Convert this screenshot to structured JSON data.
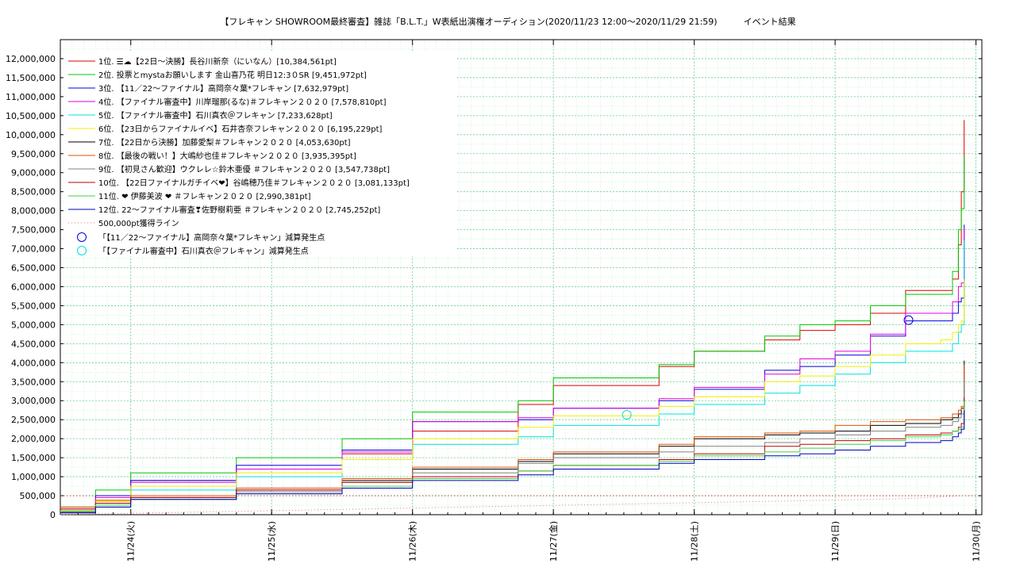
{
  "chart_data": {
    "type": "line",
    "title": "【フレキャン SHOWROOM最終審査】雑誌「B.L.T.」W表紙出演権オーディション(2020/11/23 12:00〜2020/11/29 21:59)　　　イベント結果",
    "xlabel": "",
    "ylabel": "",
    "x_range": [
      "2020-11-23 12:00",
      "2020-11-30 01:00"
    ],
    "ylim": [
      0,
      12500000
    ],
    "y_ticks": [
      0,
      500000,
      1000000,
      1500000,
      2000000,
      2500000,
      3000000,
      3500000,
      4000000,
      4500000,
      5000000,
      5500000,
      6000000,
      6500000,
      7000000,
      7500000,
      8000000,
      8500000,
      9000000,
      9500000,
      10000000,
      10500000,
      11000000,
      11500000,
      12000000
    ],
    "y_tick_labels": [
      "0",
      "500,000",
      "1,000,000",
      "1,500,000",
      "2,000,000",
      "2,500,000",
      "3,000,000",
      "3,500,000",
      "4,000,000",
      "4,500,000",
      "5,000,000",
      "5,500,000",
      "6,000,000",
      "6,500,000",
      "7,000,000",
      "7,500,000",
      "8,000,000",
      "8,500,000",
      "9,000,000",
      "9,500,000",
      "10,000,000",
      "10,500,000",
      "11,000,000",
      "11,500,000",
      "12,000,000"
    ],
    "x_ticks": [
      "2020-11-24",
      "2020-11-25",
      "2020-11-26",
      "2020-11-27",
      "2020-11-28",
      "2020-11-29",
      "2020-11-30"
    ],
    "x_tick_labels": [
      "11/24(火)",
      "11/25(水)",
      "11/26(木)",
      "11/27(金)",
      "11/28(土)",
      "11/29(日)",
      "11/30(月)"
    ],
    "grid": true,
    "legend_position": "top-left",
    "series": [
      {
        "name": "1位. ☰☁【22日〜決勝】長谷川新奈（にいなん）[10,384,561pt]",
        "color": "#e00000",
        "x": [
          "2020-11-23 12:00",
          "2020-11-23 18:00",
          "2020-11-24 00:00",
          "2020-11-24 18:00",
          "2020-11-25 12:00",
          "2020-11-26 00:00",
          "2020-11-26 18:00",
          "2020-11-27 00:00",
          "2020-11-27 18:00",
          "2020-11-28 00:00",
          "2020-11-28 12:00",
          "2020-11-28 18:00",
          "2020-11-29 00:00",
          "2020-11-29 06:00",
          "2020-11-29 12:00",
          "2020-11-29 18:00",
          "2020-11-29 20:00",
          "2020-11-29 21:00",
          "2020-11-29 21:30",
          "2020-11-29 21:59"
        ],
        "y": [
          100000,
          350000,
          900000,
          1200000,
          1600000,
          2200000,
          2900000,
          3400000,
          3900000,
          4300000,
          4600000,
          4850000,
          5000000,
          5300000,
          5900000,
          5900000,
          6200000,
          7100000,
          8500000,
          10384561
        ]
      },
      {
        "name": "2位. 投票とmystaお願いします 金山喜乃花 明日12:3０SR [9,451,972pt]",
        "color": "#00c800",
        "x": [
          "2020-11-23 12:00",
          "2020-11-23 18:00",
          "2020-11-24 00:00",
          "2020-11-24 18:00",
          "2020-11-25 12:00",
          "2020-11-26 00:00",
          "2020-11-26 18:00",
          "2020-11-27 00:00",
          "2020-11-27 18:00",
          "2020-11-28 00:00",
          "2020-11-28 12:00",
          "2020-11-28 18:00",
          "2020-11-29 00:00",
          "2020-11-29 06:00",
          "2020-11-29 12:00",
          "2020-11-29 18:00",
          "2020-11-29 20:00",
          "2020-11-29 21:00",
          "2020-11-29 21:30",
          "2020-11-29 21:59"
        ],
        "y": [
          200000,
          650000,
          1100000,
          1500000,
          2000000,
          2700000,
          3000000,
          3600000,
          3950000,
          4300000,
          4700000,
          5000000,
          5100000,
          5500000,
          5800000,
          5800000,
          6400000,
          7500000,
          8050000,
          9451972
        ]
      },
      {
        "name": "3位. 【11／22〜ファイナル】高岡奈々葉*フレキャン [7,632,979pt]",
        "color": "#0000e0",
        "x": [
          "2020-11-23 12:00",
          "2020-11-23 18:00",
          "2020-11-24 00:00",
          "2020-11-24 18:00",
          "2020-11-25 12:00",
          "2020-11-26 00:00",
          "2020-11-26 18:00",
          "2020-11-27 00:00",
          "2020-11-27 18:00",
          "2020-11-28 00:00",
          "2020-11-28 12:00",
          "2020-11-28 18:00",
          "2020-11-29 00:00",
          "2020-11-29 06:00",
          "2020-11-29 12:00",
          "2020-11-29 18:00",
          "2020-11-29 20:00",
          "2020-11-29 21:00",
          "2020-11-29 21:30",
          "2020-11-29 21:59"
        ],
        "y": [
          50000,
          500000,
          900000,
          1300000,
          1700000,
          2450000,
          2500000,
          2800000,
          3000000,
          3300000,
          3800000,
          3900000,
          4200000,
          4700000,
          5100000,
          5100000,
          5300000,
          5600000,
          5700000,
          7632979
        ]
      },
      {
        "name": "4位. 【ファイナル審査中】川岸瑠那(るな)＃フレキャン２０２０ [7,578,810pt]",
        "color": "#e000e0",
        "x": [
          "2020-11-23 12:00",
          "2020-11-23 18:00",
          "2020-11-24 00:00",
          "2020-11-24 18:00",
          "2020-11-25 12:00",
          "2020-11-26 00:00",
          "2020-11-26 18:00",
          "2020-11-27 00:00",
          "2020-11-27 18:00",
          "2020-11-28 00:00",
          "2020-11-28 12:00",
          "2020-11-28 18:00",
          "2020-11-29 00:00",
          "2020-11-29 06:00",
          "2020-11-29 12:00",
          "2020-11-29 18:00",
          "2020-11-29 20:00",
          "2020-11-29 21:00",
          "2020-11-29 21:30",
          "2020-11-29 21:59"
        ],
        "y": [
          150000,
          450000,
          850000,
          1200000,
          1650000,
          2450000,
          2550000,
          2800000,
          3050000,
          3350000,
          3700000,
          4100000,
          4300000,
          4750000,
          5300000,
          5300000,
          5600000,
          6000000,
          6100000,
          7578810
        ]
      },
      {
        "name": "5位. 【ファイナル審査中】石川真衣＠フレキャン [7,233,628pt]",
        "color": "#00e0e0",
        "x": [
          "2020-11-23 12:00",
          "2020-11-23 18:00",
          "2020-11-24 00:00",
          "2020-11-24 18:00",
          "2020-11-25 12:00",
          "2020-11-26 00:00",
          "2020-11-26 18:00",
          "2020-11-27 00:00",
          "2020-11-27 18:00",
          "2020-11-28 00:00",
          "2020-11-28 12:00",
          "2020-11-28 18:00",
          "2020-11-29 00:00",
          "2020-11-29 06:00",
          "2020-11-29 12:00",
          "2020-11-29 18:00",
          "2020-11-29 20:00",
          "2020-11-29 21:00",
          "2020-11-29 21:30",
          "2020-11-29 21:59"
        ],
        "y": [
          100000,
          300000,
          650000,
          1000000,
          1450000,
          1850000,
          2050000,
          2350000,
          2650000,
          2900000,
          3200000,
          3400000,
          3700000,
          4000000,
          4300000,
          4300000,
          4500000,
          4800000,
          5000000,
          7233628
        ]
      },
      {
        "name": "6位. 【23日からファイナルイベ】石井杏奈フレキャン２０２０ [6,195,229pt]",
        "color": "#f0f000",
        "x": [
          "2020-11-23 12:00",
          "2020-11-23 18:00",
          "2020-11-24 00:00",
          "2020-11-24 18:00",
          "2020-11-25 12:00",
          "2020-11-26 00:00",
          "2020-11-26 18:00",
          "2020-11-27 00:00",
          "2020-11-27 18:00",
          "2020-11-28 00:00",
          "2020-11-28 12:00",
          "2020-11-28 18:00",
          "2020-11-29 00:00",
          "2020-11-29 06:00",
          "2020-11-29 12:00",
          "2020-11-29 18:00",
          "2020-11-29 20:00",
          "2020-11-29 21:00",
          "2020-11-29 21:30",
          "2020-11-29 21:59"
        ],
        "y": [
          80000,
          350000,
          750000,
          1100000,
          1450000,
          2000000,
          2300000,
          2600000,
          2850000,
          3100000,
          3500000,
          3650000,
          3900000,
          4200000,
          4500000,
          4600000,
          4800000,
          5000000,
          5100000,
          6195229
        ]
      },
      {
        "name": "7位. 【22日から決勝】加藤愛梨＃フレキャン２０２０ [4,053,630pt]",
        "color": "#000000",
        "x": [
          "2020-11-23 12:00",
          "2020-11-23 18:00",
          "2020-11-24 00:00",
          "2020-11-24 18:00",
          "2020-11-25 12:00",
          "2020-11-26 00:00",
          "2020-11-26 18:00",
          "2020-11-27 00:00",
          "2020-11-27 18:00",
          "2020-11-28 00:00",
          "2020-11-28 12:00",
          "2020-11-28 18:00",
          "2020-11-29 00:00",
          "2020-11-29 06:00",
          "2020-11-29 12:00",
          "2020-11-29 18:00",
          "2020-11-29 20:00",
          "2020-11-29 21:00",
          "2020-11-29 21:30",
          "2020-11-29 21:59"
        ],
        "y": [
          60000,
          250000,
          450000,
          650000,
          900000,
          1200000,
          1400000,
          1600000,
          1800000,
          2000000,
          2100000,
          2150000,
          2200000,
          2350000,
          2400000,
          2500000,
          2550000,
          2650000,
          2800000,
          4053630
        ]
      },
      {
        "name": "8位. 【最後の戦い！】大嶋紗也佳＃フレキャン２０２０ [3,935,395pt]",
        "color": "#e05000",
        "x": [
          "2020-11-23 12:00",
          "2020-11-23 18:00",
          "2020-11-24 00:00",
          "2020-11-24 18:00",
          "2020-11-25 12:00",
          "2020-11-26 00:00",
          "2020-11-26 18:00",
          "2020-11-27 00:00",
          "2020-11-27 18:00",
          "2020-11-28 00:00",
          "2020-11-28 12:00",
          "2020-11-28 18:00",
          "2020-11-29 00:00",
          "2020-11-29 06:00",
          "2020-11-29 12:00",
          "2020-11-29 18:00",
          "2020-11-29 20:00",
          "2020-11-29 21:00",
          "2020-11-29 21:30",
          "2020-11-29 21:59"
        ],
        "y": [
          200000,
          380000,
          500000,
          700000,
          950000,
          1250000,
          1450000,
          1650000,
          1850000,
          2050000,
          2150000,
          2200000,
          2350000,
          2450000,
          2500000,
          2550000,
          2650000,
          2750000,
          2850000,
          3935395
        ]
      },
      {
        "name": "9位. 【初見さん歓迎】ウクレレ☆鈴木亜優 ＃フレキャン２０２０ [3,547,738pt]",
        "color": "#808080",
        "x": [
          "2020-11-23 12:00",
          "2020-11-23 18:00",
          "2020-11-24 00:00",
          "2020-11-24 18:00",
          "2020-11-25 12:00",
          "2020-11-26 00:00",
          "2020-11-26 18:00",
          "2020-11-27 00:00",
          "2020-11-27 18:00",
          "2020-11-28 00:00",
          "2020-11-28 12:00",
          "2020-11-28 18:00",
          "2020-11-29 00:00",
          "2020-11-29 06:00",
          "2020-11-29 12:00",
          "2020-11-29 18:00",
          "2020-11-29 20:00",
          "2020-11-29 21:00",
          "2020-11-29 21:30",
          "2020-11-29 21:59"
        ],
        "y": [
          50000,
          200000,
          400000,
          600000,
          850000,
          1100000,
          1350000,
          1500000,
          1650000,
          1800000,
          1900000,
          2000000,
          2100000,
          2200000,
          2300000,
          2350000,
          2450000,
          2550000,
          2650000,
          3547738
        ]
      },
      {
        "name": "10位. 【22日ファイナルガチイベ❤】谷嶋穂乃佳＃フレキャン２０２０ [3,081,133pt]",
        "color": "#c00000",
        "x": [
          "2020-11-23 12:00",
          "2020-11-23 18:00",
          "2020-11-24 00:00",
          "2020-11-24 18:00",
          "2020-11-25 12:00",
          "2020-11-26 00:00",
          "2020-11-26 18:00",
          "2020-11-27 00:00",
          "2020-11-27 18:00",
          "2020-11-28 00:00",
          "2020-11-28 12:00",
          "2020-11-28 18:00",
          "2020-11-29 00:00",
          "2020-11-29 06:00",
          "2020-11-29 12:00",
          "2020-11-29 18:00",
          "2020-11-29 20:00",
          "2020-11-29 21:00",
          "2020-11-29 21:30",
          "2020-11-29 21:59"
        ],
        "y": [
          150000,
          300000,
          450000,
          650000,
          850000,
          1000000,
          1150000,
          1300000,
          1450000,
          1600000,
          1800000,
          1850000,
          1950000,
          2000000,
          2100000,
          2150000,
          2200000,
          2300000,
          2400000,
          3081133
        ]
      },
      {
        "name": "11位. ❤ 伊藤美波 ❤ ＃フレキャン２０２０ [2,990,381pt]",
        "color": "#40d040",
        "x": [
          "2020-11-23 12:00",
          "2020-11-23 18:00",
          "2020-11-24 00:00",
          "2020-11-24 18:00",
          "2020-11-25 12:00",
          "2020-11-26 00:00",
          "2020-11-26 18:00",
          "2020-11-27 00:00",
          "2020-11-27 18:00",
          "2020-11-28 00:00",
          "2020-11-28 12:00",
          "2020-11-28 18:00",
          "2020-11-29 00:00",
          "2020-11-29 06:00",
          "2020-11-29 12:00",
          "2020-11-29 18:00",
          "2020-11-29 20:00",
          "2020-11-29 21:00",
          "2020-11-29 21:30",
          "2020-11-29 21:59"
        ],
        "y": [
          100000,
          250000,
          400000,
          550000,
          750000,
          950000,
          1150000,
          1300000,
          1400000,
          1550000,
          1650000,
          1750000,
          1850000,
          1950000,
          2050000,
          2100000,
          2200000,
          2250000,
          2300000,
          2990381
        ]
      },
      {
        "name": "12位. 22〜ファイナル審査❣佐野樹莉亜 ＃フレキャン２０２０ [2,745,252pt]",
        "color": "#0000c0",
        "x": [
          "2020-11-23 12:00",
          "2020-11-23 18:00",
          "2020-11-24 00:00",
          "2020-11-24 18:00",
          "2020-11-25 12:00",
          "2020-11-26 00:00",
          "2020-11-26 18:00",
          "2020-11-27 00:00",
          "2020-11-27 18:00",
          "2020-11-28 00:00",
          "2020-11-28 12:00",
          "2020-11-28 18:00",
          "2020-11-29 00:00",
          "2020-11-29 06:00",
          "2020-11-29 12:00",
          "2020-11-29 18:00",
          "2020-11-29 20:00",
          "2020-11-29 21:00",
          "2020-11-29 21:30",
          "2020-11-29 21:59"
        ],
        "y": [
          50000,
          200000,
          400000,
          550000,
          700000,
          900000,
          1050000,
          1200000,
          1350000,
          1450000,
          1550000,
          1600000,
          1700000,
          1800000,
          1900000,
          1950000,
          2050000,
          2150000,
          2250000,
          2745252
        ]
      },
      {
        "name": "500,000pt獲得ライン",
        "color": "#e08080",
        "dotted": true,
        "x": [
          "2020-11-23 12:00",
          "2020-11-24 12:00",
          "2020-11-25 12:00",
          "2020-11-26 12:00",
          "2020-11-27 12:00",
          "2020-11-28 12:00",
          "2020-11-29 12:00",
          "2020-11-29 21:59"
        ],
        "y": [
          0,
          70000,
          140000,
          210000,
          280000,
          350000,
          420000,
          500000
        ]
      }
    ],
    "markers": [
      {
        "name": "「【11／22〜ファイナル】高岡奈々葉*フレキャン」減算発生点",
        "color": "#0000e0",
        "x": "2020-11-29 12:30",
        "y": 5120000
      },
      {
        "name": "「【ファイナル審査中】石川真衣＠フレキャン」減算発生点",
        "color": "#00e0e0",
        "x": "2020-11-27 12:30",
        "y": 2630000
      }
    ],
    "h_line": {
      "y": 500000,
      "color": "#e00000"
    }
  }
}
